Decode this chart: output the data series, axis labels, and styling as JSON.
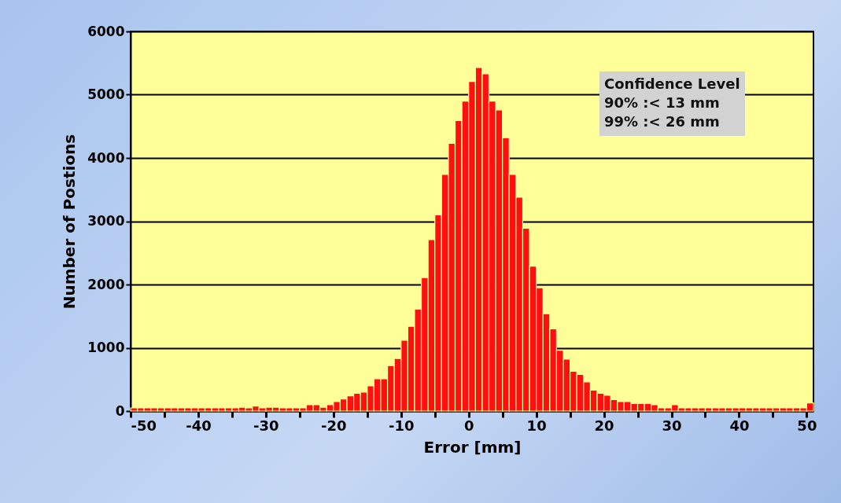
{
  "chart_data": {
    "type": "histogram",
    "xlabel": "Error [mm]",
    "ylabel": "Number of Postions",
    "bins": [
      -50,
      -49,
      -48,
      -47,
      -46,
      -45,
      -44,
      -43,
      -42,
      -41,
      -40,
      -39,
      -38,
      -37,
      -36,
      -35,
      -34,
      -33,
      -32,
      -31,
      -30,
      -29,
      -28,
      -27,
      -26,
      -25,
      -24,
      -23,
      -22,
      -21,
      -20,
      -19,
      -18,
      -17,
      -16,
      -15,
      -14,
      -13,
      -12,
      -11,
      -10,
      -9,
      -8,
      -7,
      -6,
      -5,
      -4,
      -3,
      -2,
      -1,
      0,
      1,
      2,
      3,
      4,
      5,
      6,
      7,
      8,
      9,
      10,
      11,
      12,
      13,
      14,
      15,
      16,
      17,
      18,
      19,
      20,
      21,
      22,
      23,
      24,
      25,
      26,
      27,
      28,
      29,
      30,
      31,
      32,
      33,
      34,
      35,
      36,
      37,
      38,
      39,
      40,
      41,
      42,
      43,
      44,
      45,
      46,
      47,
      48,
      49,
      50,
      51
    ],
    "values": [
      50,
      50,
      50,
      50,
      50,
      50,
      50,
      50,
      50,
      50,
      50,
      50,
      50,
      50,
      50,
      50,
      60,
      50,
      80,
      50,
      60,
      60,
      50,
      50,
      50,
      50,
      100,
      100,
      60,
      100,
      150,
      190,
      240,
      280,
      300,
      400,
      510,
      510,
      720,
      830,
      1120,
      1340,
      1610,
      2110,
      2710,
      3100,
      3740,
      4230,
      4590,
      4900,
      5210,
      5430,
      5330,
      4900,
      4760,
      4320,
      3740,
      3380,
      2890,
      2290,
      1950,
      1540,
      1300,
      960,
      820,
      630,
      580,
      460,
      330,
      280,
      250,
      180,
      150,
      150,
      120,
      120,
      120,
      100,
      50,
      50,
      100,
      50,
      50,
      50,
      50,
      50,
      50,
      50,
      50,
      50,
      50,
      50,
      50,
      50,
      50,
      50,
      50,
      50,
      50,
      50,
      130
    ],
    "color": "#ff1010",
    "xlim": [
      -50,
      51
    ],
    "xticks": [
      -50,
      {
        "value": -45,
        "label": null
      },
      -40,
      {
        "value": -35,
        "label": null
      },
      -30,
      {
        "value": -25,
        "label": null
      },
      -20,
      {
        "value": -15,
        "label": null
      },
      -10,
      {
        "value": -5,
        "label": null
      },
      0,
      {
        "value": 5,
        "label": null
      },
      10,
      {
        "value": 15,
        "label": null
      },
      20,
      {
        "value": 25,
        "label": null
      },
      30,
      {
        "value": 35,
        "label": null
      },
      40,
      {
        "value": 45,
        "label": null
      },
      50
    ],
    "ylim": [
      0,
      6000
    ],
    "yticks": [
      0,
      1000,
      2000,
      3000,
      4000,
      5000,
      6000
    ],
    "grid": "y",
    "annotations": [
      "Confidence Level",
      "90% :< 13 mm",
      "99% :< 26 mm"
    ]
  }
}
